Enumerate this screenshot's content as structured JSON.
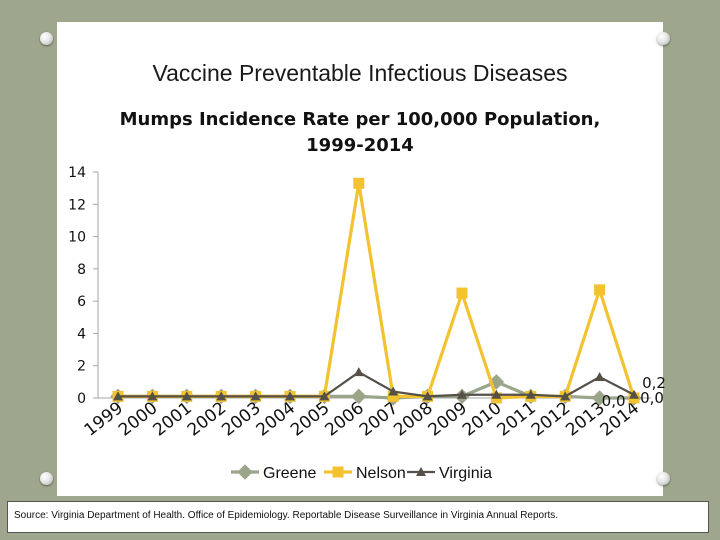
{
  "slide": {
    "title": "Vaccine Preventable Infectious Diseases",
    "source": "Source: Virginia Department of Health. Office of Epidemiology. Reportable Disease Surveillance in Virginia Annual Reports."
  },
  "colors": {
    "background": "#9ea78e",
    "greene": "#9aa58a",
    "nelson": "#f2c230",
    "virginia": "#555048",
    "axis": "#a6a6a6"
  },
  "chart_data": {
    "type": "line",
    "title": "Mumps Incidence Rate per 100,000 Population,",
    "subtitle": "1999-2014",
    "categories": [
      "1999",
      "2000",
      "2001",
      "2002",
      "2003",
      "2004",
      "2005",
      "2006",
      "2007",
      "2008",
      "2009",
      "2010",
      "2011",
      "2012",
      "2013",
      "2014"
    ],
    "ylim": [
      0,
      14
    ],
    "yticks": [
      "0",
      "2",
      "4",
      "6",
      "8",
      "10",
      "12",
      "14"
    ],
    "legend_position": "bottom",
    "grid": false,
    "series": [
      {
        "name": "Greene",
        "marker": "diamond",
        "color": "#9aa58a",
        "values": [
          0.1,
          0.1,
          0.1,
          0.1,
          0.1,
          0.1,
          0.1,
          0.1,
          0.0,
          0.1,
          0.1,
          1.0,
          0.1,
          0.1,
          0.0,
          0.0
        ]
      },
      {
        "name": "Nelson",
        "marker": "square",
        "color": "#f2c230",
        "values": [
          0.1,
          0.1,
          0.1,
          0.1,
          0.1,
          0.1,
          0.1,
          13.3,
          0.1,
          0.1,
          6.5,
          0.0,
          0.1,
          0.1,
          6.7,
          0.0
        ]
      },
      {
        "name": "Virginia",
        "marker": "triangle",
        "color": "#555048",
        "values": [
          0.1,
          0.1,
          0.1,
          0.1,
          0.1,
          0.1,
          0.1,
          1.6,
          0.4,
          0.1,
          0.2,
          0.2,
          0.2,
          0.1,
          1.3,
          0.2
        ]
      }
    ],
    "end_labels": [
      {
        "text": "0,2",
        "category": "2014",
        "value": 0.2,
        "dx": 20,
        "dy": -7
      },
      {
        "text": "0,0",
        "category": "2013",
        "value": 0.0,
        "dx": 14,
        "dy": 8
      },
      {
        "text": "0,0",
        "category": "2014",
        "value": 0.0,
        "dx": 18,
        "dy": 5
      }
    ]
  }
}
